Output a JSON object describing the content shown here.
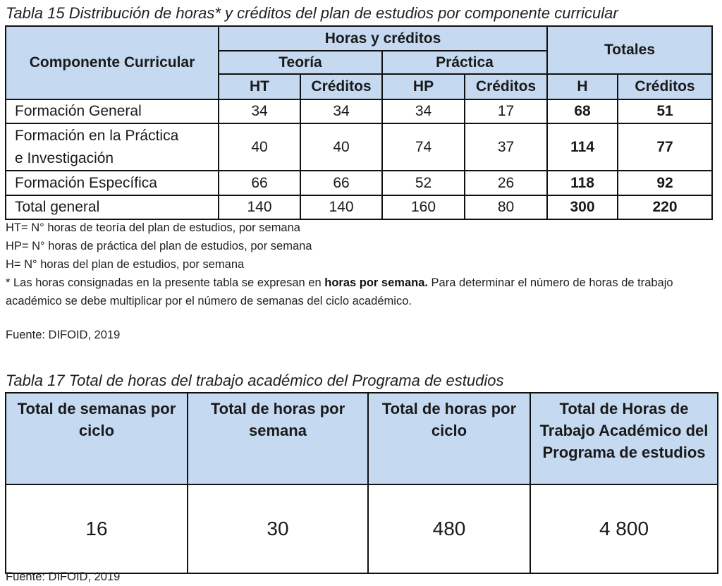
{
  "table15": {
    "caption": "Tabla 15 Distribución de horas* y créditos del plan de estudios por componente curricular",
    "header": {
      "componente": "Componente Curricular",
      "horas_creditos": "Horas y créditos",
      "totales": "Totales",
      "teoria": "Teoría",
      "practica": "Práctica",
      "ht": "HT",
      "creditos_t": "Créditos",
      "hp": "HP",
      "creditos_p": "Créditos",
      "h": "H",
      "creditos_tot": "Créditos"
    },
    "rows": [
      {
        "componente": "Formación General",
        "ht": "34",
        "ct": "34",
        "hp": "34",
        "cp": "17",
        "h": "68",
        "c": "51"
      },
      {
        "componente_l1": "Formación en la Práctica",
        "componente_l2": "e Investigación",
        "ht": "40",
        "ct": "40",
        "hp": "74",
        "cp": "37",
        "h": "114",
        "c": "77"
      },
      {
        "componente": "Formación Específica",
        "ht": "66",
        "ct": "66",
        "hp": "52",
        "cp": "26",
        "h": "118",
        "c": "92"
      },
      {
        "componente": "Total general",
        "ht": "140",
        "ct": "140",
        "hp": "160",
        "cp": "80",
        "h": "300",
        "c": "220"
      }
    ],
    "notes": {
      "ht": "HT= N° horas de teoría del plan de estudios, por semana",
      "hp": "HP= N° horas de práctica del plan de estudios, por semana",
      "h": "H= N° horas del plan de estudios, por semana",
      "star_a": "* Las horas consignadas en la presente tabla se expresan en ",
      "star_bold": "horas por semana.",
      "star_b": " Para determinar el número de horas de trabajo académico se debe multiplicar por el número de semanas del ciclo académico."
    },
    "source": "Fuente: DIFOID, 2019"
  },
  "table17": {
    "caption": "Tabla 17 Total de horas del trabajo académico del Programa de estudios",
    "headers": [
      "Total de semanas por ciclo",
      "Total de horas por semana",
      "Total de horas por ciclo",
      "Total de Horas de Trabajo Académico del Programa de estudios"
    ],
    "values": [
      "16",
      "30",
      "480",
      "4 800"
    ],
    "source": "Fuente: DIFOID, 2019"
  }
}
